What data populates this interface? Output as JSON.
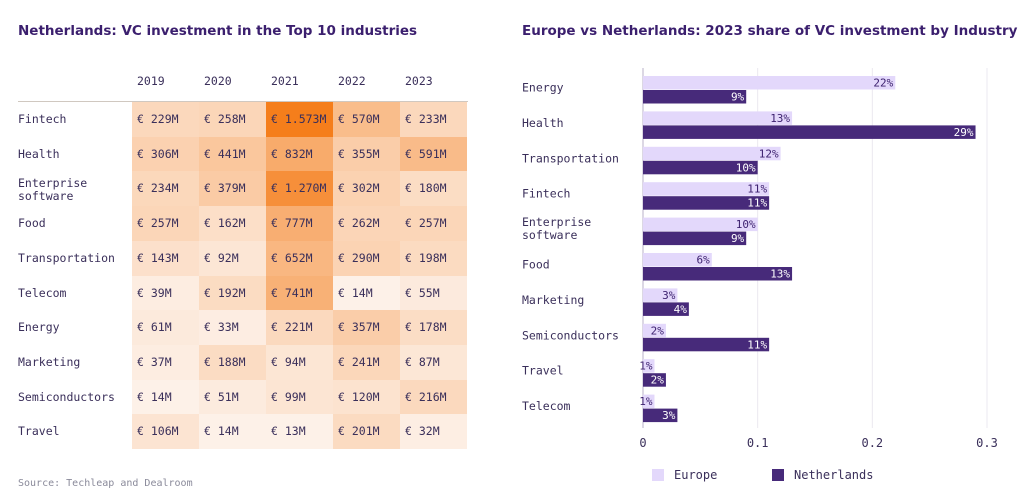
{
  "chart_data": [
    {
      "type": "heatmap",
      "title": "Netherlands: VC investment in the Top 10 industries",
      "columns": [
        "2019",
        "2020",
        "2021",
        "2022",
        "2023"
      ],
      "rows": [
        {
          "label": "Fintech",
          "values": [
            229,
            258,
            1573,
            570,
            233
          ],
          "display": [
            "€ 229M",
            "€ 258M",
            "€ 1.573M",
            "€ 570M",
            "€ 233M"
          ]
        },
        {
          "label": "Health",
          "values": [
            306,
            441,
            832,
            355,
            591
          ],
          "display": [
            "€ 306M",
            "€ 441M",
            "€ 832M",
            "€ 355M",
            "€ 591M"
          ]
        },
        {
          "label": "Enterprise software",
          "values": [
            234,
            379,
            1270,
            302,
            180
          ],
          "display": [
            "€ 234M",
            "€ 379M",
            "€ 1.270M",
            "€ 302M",
            "€ 180M"
          ]
        },
        {
          "label": "Food",
          "values": [
            257,
            162,
            777,
            262,
            257
          ],
          "display": [
            "€ 257M",
            "€ 162M",
            "€ 777M",
            "€ 262M",
            "€ 257M"
          ]
        },
        {
          "label": "Transportation",
          "values": [
            143,
            92,
            652,
            290,
            198
          ],
          "display": [
            "€ 143M",
            "€ 92M",
            "€ 652M",
            "€ 290M",
            "€ 198M"
          ]
        },
        {
          "label": "Telecom",
          "values": [
            39,
            192,
            741,
            14,
            55
          ],
          "display": [
            "€ 39M",
            "€ 192M",
            "€ 741M",
            "€ 14M",
            "€ 55M"
          ]
        },
        {
          "label": "Energy",
          "values": [
            61,
            33,
            221,
            357,
            178
          ],
          "display": [
            "€ 61M",
            "€ 33M",
            "€ 221M",
            "€ 357M",
            "€ 178M"
          ]
        },
        {
          "label": "Marketing",
          "values": [
            37,
            188,
            94,
            241,
            87
          ],
          "display": [
            "€ 37M",
            "€ 188M",
            "€ 94M",
            "€ 241M",
            "€ 87M"
          ]
        },
        {
          "label": "Semiconductors",
          "values": [
            14,
            51,
            99,
            120,
            216
          ],
          "display": [
            "€ 14M",
            "€ 51M",
            "€ 99M",
            "€ 120M",
            "€ 216M"
          ]
        },
        {
          "label": "Travel",
          "values": [
            106,
            14,
            13,
            201,
            32
          ],
          "display": [
            "€ 106M",
            "€ 14M",
            "€ 13M",
            "€ 201M",
            "€ 32M"
          ]
        }
      ],
      "colors": {
        "low": "#fdf4ee",
        "high": "#f57e1b"
      },
      "source": "Source: Techleap and Dealroom"
    },
    {
      "type": "bar",
      "orientation": "horizontal",
      "title": "Europe vs Netherlands: 2023 share of VC investment by Industry",
      "categories": [
        "Energy",
        "Health",
        "Transportation",
        "Fintech",
        "Enterprise software",
        "Food",
        "Marketing",
        "Semiconductors",
        "Travel",
        "Telecom"
      ],
      "series": [
        {
          "name": "Europe",
          "color": "#e3d8fb",
          "values": [
            0.22,
            0.13,
            0.12,
            0.11,
            0.1,
            0.06,
            0.03,
            0.02,
            0.01,
            0.01
          ],
          "labels": [
            "22%",
            "13%",
            "12%",
            "11%",
            "10%",
            "6%",
            "3%",
            "2%",
            "1%",
            "1%"
          ]
        },
        {
          "name": "Netherlands",
          "color": "#472a7a",
          "values": [
            0.09,
            0.29,
            0.1,
            0.11,
            0.09,
            0.13,
            0.04,
            0.11,
            0.02,
            0.03
          ],
          "labels": [
            "9%",
            "29%",
            "10%",
            "11%",
            "9%",
            "13%",
            "4%",
            "11%",
            "2%",
            "3%"
          ]
        }
      ],
      "xlim": [
        0,
        0.3
      ],
      "xticks": [
        "0",
        "0.1",
        "0.2",
        "0.3"
      ],
      "grid": true,
      "legend": "bottom"
    }
  ]
}
